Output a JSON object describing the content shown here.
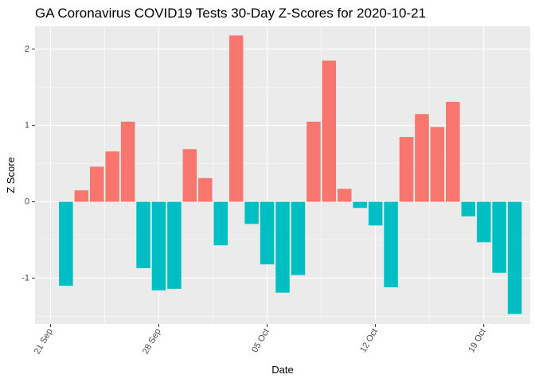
{
  "chart_data": {
    "type": "bar",
    "title": "GA Coronavirus COVID19 Tests 30-Day Z-Scores for 2020-10-21",
    "xlabel": "Date",
    "ylabel": "Z Score",
    "x_axis": {
      "type": "date",
      "range": [
        "2020-09-20",
        "2020-10-22"
      ],
      "tick_labels": [
        {
          "date": "2020-09-21",
          "label": "21 Sep"
        },
        {
          "date": "2020-09-28",
          "label": "28 Sep"
        },
        {
          "date": "2020-10-05",
          "label": "05 Oct"
        },
        {
          "date": "2020-10-12",
          "label": "12 Oct"
        },
        {
          "date": "2020-10-19",
          "label": "19 Oct"
        }
      ]
    },
    "y_axis": {
      "range": [
        -1.6,
        2.3
      ],
      "ticks": [
        -1,
        0,
        1,
        2
      ],
      "tick_labels": [
        "-1",
        "0",
        "1",
        "2"
      ]
    },
    "grid": true,
    "legend": "none",
    "colors": {
      "positive": "#F8766D",
      "negative": "#00BFC4",
      "panel": "#EBEBEB",
      "grid": "#FFFFFF"
    },
    "x": [
      "2020-09-22",
      "2020-09-23",
      "2020-09-24",
      "2020-09-25",
      "2020-09-26",
      "2020-09-27",
      "2020-09-28",
      "2020-09-29",
      "2020-09-30",
      "2020-10-01",
      "2020-10-02",
      "2020-10-03",
      "2020-10-04",
      "2020-10-05",
      "2020-10-06",
      "2020-10-07",
      "2020-10-08",
      "2020-10-09",
      "2020-10-10",
      "2020-10-11",
      "2020-10-12",
      "2020-10-13",
      "2020-10-14",
      "2020-10-15",
      "2020-10-16",
      "2020-10-17",
      "2020-10-18",
      "2020-10-19",
      "2020-10-20",
      "2020-10-21"
    ],
    "values": [
      -1.1,
      0.15,
      0.46,
      0.66,
      1.05,
      -0.87,
      -1.16,
      -1.14,
      0.69,
      0.31,
      -0.57,
      2.18,
      -0.29,
      -0.82,
      -1.19,
      -0.96,
      1.05,
      1.85,
      0.17,
      -0.08,
      -0.31,
      -1.12,
      0.85,
      1.15,
      0.98,
      1.31,
      -0.19,
      -0.53,
      -0.93,
      -1.47
    ]
  }
}
